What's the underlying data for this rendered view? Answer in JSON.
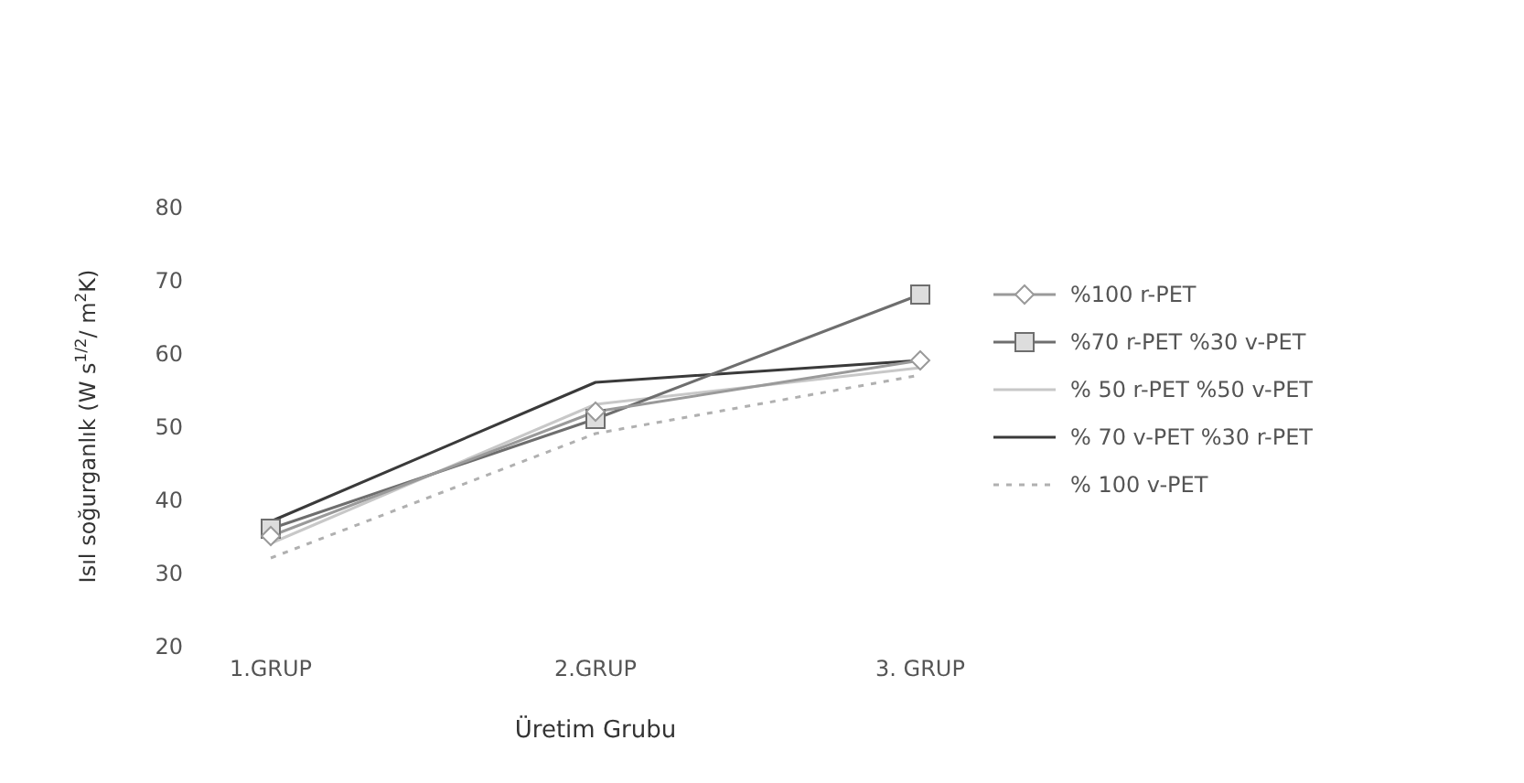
{
  "chart_data": {
    "type": "line",
    "xlabel": "Üretim Grubu",
    "ylabel": "Isıl soğurganlık (W s$^{1/2}$/ m$^{2}$K)",
    "categories": [
      "1.GRUP",
      "2.GRUP",
      "3. GRUP"
    ],
    "series": [
      {
        "name": "%100 r-PET",
        "color": "#9a9a9a",
        "marker": "diamond",
        "values": [
          35,
          52,
          59
        ]
      },
      {
        "name": "%70 r-PET %30 v-PET",
        "color": "#6e6e6e",
        "marker": "square",
        "values": [
          36,
          51,
          68
        ]
      },
      {
        "name": "% 50 r-PET %50 v-PET",
        "color": "#c8c8c8",
        "marker": "none",
        "values": [
          34,
          53,
          58
        ]
      },
      {
        "name": "% 70 v-PET %30 r-PET",
        "color": "#3a3a3a",
        "marker": "none",
        "values": [
          37,
          56,
          59
        ]
      },
      {
        "name": "% 100 v-PET",
        "color": "#b0b0b0",
        "marker": "none",
        "line_style": "dotted",
        "values": [
          32,
          49,
          57
        ]
      }
    ],
    "ylim": [
      20,
      80
    ],
    "yticks": [
      20,
      30,
      40,
      50,
      60,
      70,
      80
    ],
    "legend": "right",
    "grid": false
  }
}
